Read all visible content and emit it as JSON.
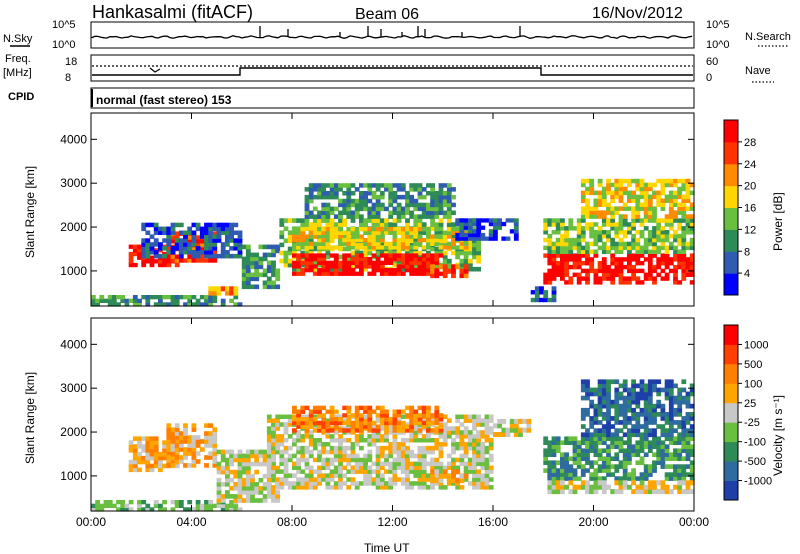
{
  "header": {
    "title": "Hankasalmi (fitACF)",
    "beam": "Beam 06",
    "date": "16/Nov/2012"
  },
  "top_panels": {
    "nsky_label": "N.Sky",
    "nsky_ticks": [
      "10^5",
      "10^0"
    ],
    "nsearch_label": "N.Search",
    "nsearch_ticks": [
      "10^5",
      "10^0"
    ],
    "freq_label": "Freq.",
    "freq_unit": "[MHz]",
    "freq_ticks": [
      "18",
      "8"
    ],
    "nave_label": "Nave",
    "nave_ticks": [
      "60",
      "0"
    ],
    "cpid_label": "CPID",
    "cpid_text": "normal (fast stereo) 153",
    "line_color": "#000000"
  },
  "chart_data": [
    {
      "type": "heatmap",
      "title": "",
      "ylabel": "Slant Range [km]",
      "xlabel": "",
      "xlim": [
        0,
        24
      ],
      "ylim": [
        200,
        4600
      ],
      "yticks": [
        "1000",
        "2000",
        "3000",
        "4000"
      ],
      "xticks": [
        "00:00",
        "04:00",
        "08:00",
        "12:00",
        "16:00",
        "20:00",
        "00:00"
      ],
      "colorbar": {
        "label": "Power [dB]",
        "ticks": [
          "4",
          "8",
          "12",
          "16",
          "20",
          "24",
          "28"
        ],
        "colors": [
          "#0000ff",
          "#2f5bb0",
          "#2e8b57",
          "#6abf40",
          "#ffd700",
          "#ff8c00",
          "#ff3300",
          "#ff0000"
        ]
      },
      "regions": [
        {
          "t0": 0.0,
          "t1": 6.0,
          "r0": 200,
          "r1": 450,
          "level": 2
        },
        {
          "t0": 1.5,
          "t1": 3.5,
          "r0": 1100,
          "r1": 1600,
          "level": 7
        },
        {
          "t0": 3.0,
          "t1": 5.0,
          "r0": 1200,
          "r1": 1900,
          "level": 6
        },
        {
          "t0": 2.0,
          "t1": 6.0,
          "r0": 1300,
          "r1": 2100,
          "level": 1
        },
        {
          "t0": 4.5,
          "t1": 6.0,
          "r0": 450,
          "r1": 650,
          "level": 5
        },
        {
          "t0": 6.0,
          "t1": 7.5,
          "r0": 600,
          "r1": 1600,
          "level": 2
        },
        {
          "t0": 7.5,
          "t1": 15.5,
          "r0": 1000,
          "r1": 2200,
          "level": 3
        },
        {
          "t0": 8.0,
          "t1": 14.0,
          "r0": 900,
          "r1": 1400,
          "level": 7
        },
        {
          "t0": 8.0,
          "t1": 15.0,
          "r0": 1500,
          "r1": 2000,
          "level": 4
        },
        {
          "t0": 8.5,
          "t1": 14.5,
          "r0": 2200,
          "r1": 3000,
          "level": 2
        },
        {
          "t0": 13.5,
          "t1": 15.0,
          "r0": 850,
          "r1": 1150,
          "level": 6
        },
        {
          "t0": 14.5,
          "t1": 17.0,
          "r0": 1700,
          "r1": 2200,
          "level": 1
        },
        {
          "t0": 17.5,
          "t1": 18.5,
          "r0": 300,
          "r1": 650,
          "level": 1
        },
        {
          "t0": 18.0,
          "t1": 24.0,
          "r0": 700,
          "r1": 1400,
          "level": 7
        },
        {
          "t0": 18.0,
          "t1": 24.0,
          "r0": 1400,
          "r1": 2200,
          "level": 3
        },
        {
          "t0": 19.5,
          "t1": 24.0,
          "r0": 2200,
          "r1": 3100,
          "level": 4
        }
      ]
    },
    {
      "type": "heatmap",
      "title": "",
      "ylabel": "Slant Range [km]",
      "xlabel": "Time UT",
      "xlim": [
        0,
        24
      ],
      "ylim": [
        200,
        4600
      ],
      "yticks": [
        "1000",
        "2000",
        "3000",
        "4000"
      ],
      "xticks": [
        "00:00",
        "04:00",
        "08:00",
        "12:00",
        "16:00",
        "20:00",
        "00:00"
      ],
      "colorbar": {
        "label": "Velocity [m s⁻¹]",
        "ticks": [
          "1000",
          "500",
          "100",
          "25",
          "-25",
          "-100",
          "-500",
          "-1000"
        ],
        "colors": [
          "#1f3fa8",
          "#2e6b9e",
          "#2e8b57",
          "#6abf40",
          "#c8c8c8",
          "#ffa500",
          "#ff7f00",
          "#ff4000",
          "#ff0000"
        ]
      },
      "regions": [
        {
          "t0": 0.0,
          "t1": 6.0,
          "r0": 200,
          "r1": 450,
          "level": 3
        },
        {
          "t0": 1.5,
          "t1": 3.5,
          "r0": 1100,
          "r1": 1900,
          "level": 5
        },
        {
          "t0": 3.0,
          "t1": 5.0,
          "r0": 1200,
          "r1": 2200,
          "level": 5
        },
        {
          "t0": 5.0,
          "t1": 7.5,
          "r0": 400,
          "r1": 1600,
          "level": 4
        },
        {
          "t0": 7.0,
          "t1": 16.0,
          "r0": 700,
          "r1": 2400,
          "level": 4
        },
        {
          "t0": 8.0,
          "t1": 14.0,
          "r0": 2000,
          "r1": 2600,
          "level": 6
        },
        {
          "t0": 13.5,
          "t1": 15.0,
          "r0": 850,
          "r1": 1150,
          "level": 5
        },
        {
          "t0": 16.0,
          "t1": 17.5,
          "r0": 1900,
          "r1": 2300,
          "level": 4
        },
        {
          "t0": 18.0,
          "t1": 24.0,
          "r0": 900,
          "r1": 1900,
          "level": 2
        },
        {
          "t0": 18.0,
          "t1": 24.0,
          "r0": 600,
          "r1": 900,
          "level": 4
        },
        {
          "t0": 19.5,
          "t1": 24.0,
          "r0": 1900,
          "r1": 3200,
          "level": 1
        }
      ]
    }
  ]
}
